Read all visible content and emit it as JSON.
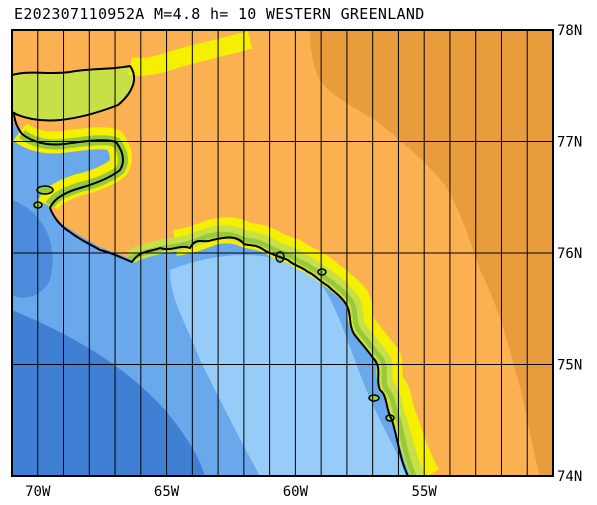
{
  "title": "E202307110952A M=4.8 h= 10 WESTERN GREENLAND",
  "map": {
    "lon_range": [
      -71,
      -50
    ],
    "lat_range": [
      74,
      78
    ],
    "lon_labels": [
      {
        "lon": -70,
        "text": "70W"
      },
      {
        "lon": -65,
        "text": "65W"
      },
      {
        "lon": -60,
        "text": "60W"
      },
      {
        "lon": -55,
        "text": "55W"
      }
    ],
    "lat_labels": [
      {
        "lat": 78,
        "text": "78N"
      },
      {
        "lat": 77,
        "text": "77N"
      },
      {
        "lat": 76,
        "text": "76N"
      },
      {
        "lat": 75,
        "text": "75N"
      },
      {
        "lat": 74,
        "text": "74N"
      }
    ],
    "colors": {
      "deep_water": "#3f80d4",
      "mid_water": "#6aa8ec",
      "shallow_water": "#98ccf8",
      "coast_green": "#98c83c",
      "light_green": "#c8e048",
      "yellow_fringe": "#f4f000",
      "land": "#fbb052",
      "ice_cap": "#e89c3c",
      "outline": "#000000"
    }
  }
}
